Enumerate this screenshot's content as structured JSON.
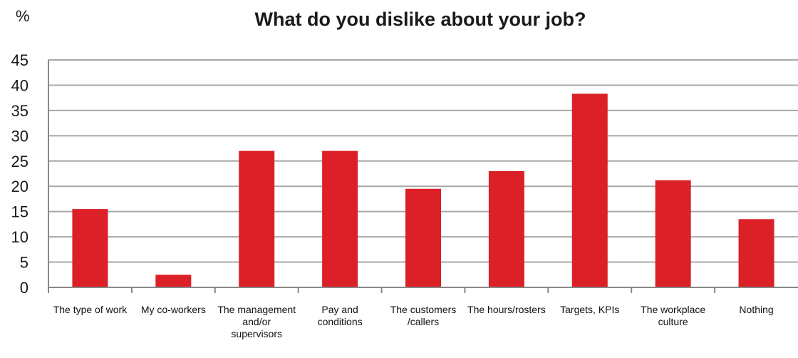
{
  "chart_data": {
    "type": "bar",
    "title": "What do you dislike about your job?",
    "unit_label": "%",
    "xlabel": "",
    "ylabel": "",
    "ylim": [
      0,
      45
    ],
    "yticks": [
      0,
      5,
      10,
      15,
      20,
      25,
      30,
      35,
      40,
      45
    ],
    "grid": true,
    "legend": "none",
    "bar_color": "#dc2027",
    "categories": [
      [
        "The type of work"
      ],
      [
        "My co-workers"
      ],
      [
        "The management",
        "and/or",
        "supervisors"
      ],
      [
        "Pay and",
        "conditions"
      ],
      [
        "The customers",
        "/callers"
      ],
      [
        "The hours/rosters"
      ],
      [
        "Targets, KPIs"
      ],
      [
        "The workplace",
        "culture"
      ],
      [
        "Nothing"
      ]
    ],
    "values": [
      15.5,
      2.5,
      27,
      27,
      19.5,
      23,
      38.3,
      21.2,
      13.5
    ]
  }
}
